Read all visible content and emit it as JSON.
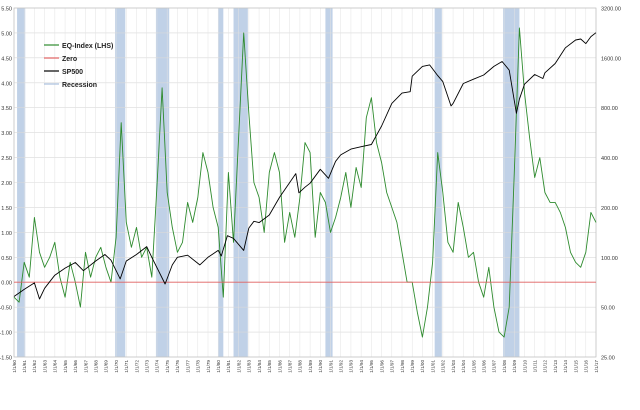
{
  "chart_data": {
    "type": "line",
    "left_axis": {
      "min": -1.5,
      "max": 5.5,
      "step": 0.5,
      "tick_labels": [
        "-1.50",
        "-1.00",
        "-0.50",
        "0.00",
        "0.50",
        "1.00",
        "1.50",
        "2.00",
        "2.50",
        "3.00",
        "3.50",
        "4.00",
        "4.50",
        "5.00",
        "5.50"
      ]
    },
    "right_axis": {
      "scale": "log",
      "min": 25,
      "max": 3200,
      "ticks": [
        25,
        50,
        100,
        200,
        400,
        800,
        1600,
        3200
      ],
      "tick_labels": [
        "25.00",
        "50.00",
        "100.00",
        "200.00",
        "400.00",
        "800.00",
        "1600.00",
        "3200.00"
      ]
    },
    "x_axis": {
      "start_year": 1960,
      "end_year": 2017,
      "tick_labels": [
        "1/1/60",
        "1/1/61",
        "1/1/62",
        "1/1/63",
        "1/1/64",
        "1/1/65",
        "1/1/66",
        "1/1/67",
        "1/1/68",
        "1/1/69",
        "1/1/70",
        "1/1/71",
        "1/1/72",
        "1/1/73",
        "1/1/74",
        "1/1/75",
        "1/1/76",
        "1/1/77",
        "1/1/78",
        "1/1/79",
        "1/1/80",
        "1/1/81",
        "1/1/82",
        "1/1/83",
        "1/1/84",
        "1/1/85",
        "1/1/86",
        "1/1/87",
        "1/1/88",
        "1/1/89",
        "1/1/90",
        "1/1/91",
        "1/1/92",
        "1/1/93",
        "1/1/94",
        "1/1/95",
        "1/1/96",
        "1/1/97",
        "1/1/98",
        "1/1/99",
        "1/1/00",
        "1/1/01",
        "1/1/02",
        "1/1/03",
        "1/1/04",
        "1/1/05",
        "1/1/06",
        "1/1/07",
        "1/1/08",
        "1/1/09",
        "1/1/10",
        "1/1/11",
        "1/1/12",
        "1/1/13",
        "1/1/14",
        "1/1/15",
        "1/1/16",
        "1/1/17"
      ]
    },
    "grid": true,
    "legend_position": "top-left",
    "legend": [
      {
        "label": "EQ-Index (LHS)",
        "color": "#2e8b2e"
      },
      {
        "label": "Zero",
        "color": "#e06060"
      },
      {
        "label": "SP500",
        "color": "#000000"
      },
      {
        "label": "Recession",
        "color": "#a9bfdd"
      }
    ],
    "recessions": [
      [
        1960.3,
        1961.1
      ],
      [
        1969.9,
        1970.9
      ],
      [
        1973.9,
        1975.2
      ],
      [
        1980.0,
        1980.5
      ],
      [
        1981.5,
        1982.9
      ],
      [
        1990.5,
        1991.2
      ],
      [
        2001.2,
        2001.9
      ],
      [
        2007.9,
        2009.5
      ]
    ],
    "series": [
      {
        "name": "EQ-Index (LHS)",
        "axis": "left",
        "color": "#2e8b2e",
        "x": [
          1960.0,
          1960.5,
          1961.0,
          1961.5,
          1962.0,
          1962.5,
          1963.0,
          1963.5,
          1964.0,
          1964.5,
          1965.0,
          1965.5,
          1966.0,
          1966.5,
          1967.0,
          1967.5,
          1968.0,
          1968.5,
          1969.0,
          1969.5,
          1970.0,
          1970.5,
          1971.0,
          1971.5,
          1972.0,
          1972.5,
          1973.0,
          1973.5,
          1974.0,
          1974.5,
          1975.0,
          1975.5,
          1976.0,
          1976.5,
          1977.0,
          1977.5,
          1978.0,
          1978.5,
          1979.0,
          1979.5,
          1980.0,
          1980.5,
          1981.0,
          1981.5,
          1982.0,
          1982.5,
          1983.0,
          1983.5,
          1984.0,
          1984.5,
          1985.0,
          1985.5,
          1986.0,
          1986.5,
          1987.0,
          1987.5,
          1988.0,
          1988.5,
          1989.0,
          1989.5,
          1990.0,
          1990.5,
          1991.0,
          1991.5,
          1992.0,
          1992.5,
          1993.0,
          1993.5,
          1994.0,
          1994.5,
          1995.0,
          1995.5,
          1996.0,
          1996.5,
          1997.0,
          1997.5,
          1998.0,
          1998.5,
          1999.0,
          1999.5,
          2000.0,
          2000.5,
          2001.0,
          2001.5,
          2002.0,
          2002.5,
          2003.0,
          2003.5,
          2004.0,
          2004.5,
          2005.0,
          2005.5,
          2006.0,
          2006.5,
          2007.0,
          2007.5,
          2008.0,
          2008.5,
          2009.0,
          2009.5,
          2010.0,
          2010.5,
          2011.0,
          2011.5,
          2012.0,
          2012.5,
          2013.0,
          2013.5,
          2014.0,
          2014.5,
          2015.0,
          2015.5,
          2016.0,
          2016.5,
          2017.0
        ],
        "y": [
          -0.3,
          -0.4,
          0.4,
          0.1,
          1.3,
          0.6,
          0.3,
          0.5,
          0.8,
          0.1,
          -0.3,
          0.4,
          0.0,
          -0.5,
          0.6,
          0.1,
          0.5,
          0.7,
          0.3,
          0.0,
          0.9,
          3.2,
          1.2,
          0.7,
          1.1,
          0.5,
          0.7,
          0.1,
          1.9,
          3.9,
          1.8,
          1.1,
          0.6,
          0.8,
          1.6,
          1.2,
          1.7,
          2.6,
          2.2,
          1.5,
          1.1,
          -0.3,
          2.2,
          0.8,
          2.9,
          5.0,
          3.4,
          2.0,
          1.7,
          1.0,
          2.2,
          2.6,
          2.2,
          0.8,
          1.4,
          0.9,
          1.7,
          2.8,
          2.6,
          0.9,
          1.8,
          1.6,
          1.0,
          1.3,
          1.7,
          2.2,
          1.5,
          2.3,
          1.9,
          3.3,
          3.7,
          2.8,
          2.4,
          1.8,
          1.5,
          1.2,
          0.6,
          0.0,
          0.0,
          -0.6,
          -1.1,
          -0.5,
          0.4,
          2.6,
          1.8,
          0.8,
          0.6,
          1.6,
          1.1,
          0.5,
          0.6,
          0.0,
          -0.3,
          0.3,
          -0.5,
          -1.0,
          -1.1,
          -0.5,
          2.2,
          5.1,
          3.8,
          2.9,
          2.1,
          2.5,
          1.8,
          1.6,
          1.6,
          1.4,
          1.1,
          0.6,
          0.4,
          0.3,
          0.6,
          1.4,
          1.2
        ]
      },
      {
        "name": "Zero",
        "axis": "left",
        "color": "#e06060",
        "x": [
          1960,
          2017
        ],
        "y": [
          0,
          0
        ]
      },
      {
        "name": "SP500",
        "axis": "right",
        "color": "#000000",
        "x": [
          1960.0,
          1961.0,
          1962.0,
          1962.5,
          1963.0,
          1964.0,
          1965.0,
          1966.0,
          1966.8,
          1968.0,
          1968.9,
          1969.5,
          1970.4,
          1971.0,
          1972.0,
          1973.0,
          1973.5,
          1974.8,
          1975.5,
          1976.0,
          1977.0,
          1978.2,
          1979.0,
          1980.0,
          1980.3,
          1980.9,
          1981.5,
          1982.5,
          1983.0,
          1983.5,
          1984.0,
          1985.0,
          1986.0,
          1987.6,
          1987.9,
          1988.5,
          1989.0,
          1990.0,
          1990.8,
          1991.5,
          1992.0,
          1993.0,
          1994.0,
          1995.0,
          1996.0,
          1997.0,
          1998.0,
          1998.8,
          1999.0,
          2000.0,
          2000.7,
          2001.5,
          2002.0,
          2002.8,
          2003.0,
          2004.0,
          2005.0,
          2006.0,
          2007.0,
          2007.8,
          2008.5,
          2009.2,
          2009.5,
          2010.0,
          2011.0,
          2011.8,
          2012.0,
          2013.0,
          2014.0,
          2015.0,
          2015.5,
          2016.0,
          2016.5,
          2017.0
        ],
        "y": [
          58,
          64,
          70,
          56,
          65,
          78,
          86,
          93,
          83,
          95,
          104,
          96,
          74,
          95,
          104,
          116,
          100,
          69,
          90,
          100,
          103,
          90,
          100,
          110,
          102,
          135,
          130,
          110,
          150,
          165,
          162,
          180,
          230,
          320,
          245,
          265,
          280,
          340,
          300,
          380,
          415,
          450,
          465,
          480,
          620,
          850,
          980,
          1000,
          1240,
          1420,
          1450,
          1250,
          1150,
          820,
          850,
          1120,
          1190,
          1260,
          1420,
          1520,
          1350,
          740,
          900,
          1110,
          1270,
          1200,
          1300,
          1480,
          1840,
          2050,
          2080,
          1950,
          2150,
          2270
        ]
      }
    ]
  }
}
